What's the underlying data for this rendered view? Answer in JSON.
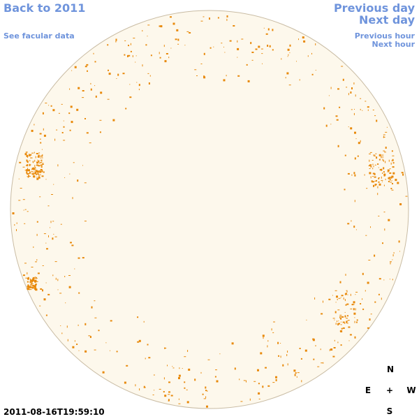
{
  "nav": {
    "back": "Back to 2011",
    "facular": "See facular data",
    "previous_day": "Previous day",
    "next_day": "Next day",
    "previous_hour": "Previous hour",
    "next_hour": "Next hour"
  },
  "compass": {
    "north": "N",
    "east": "E",
    "center": "+",
    "west": "W",
    "south": "S"
  },
  "timestamp": "2011-08-16T19:59:10"
}
